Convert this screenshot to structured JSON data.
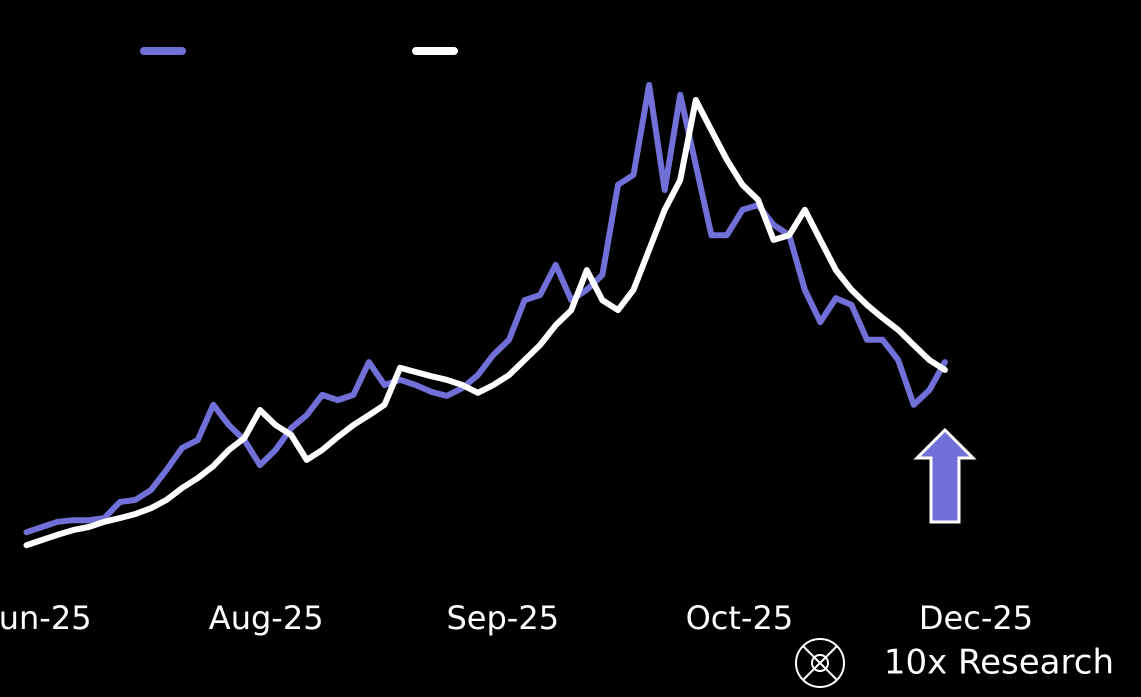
{
  "chart_data": {
    "type": "line",
    "x": [
      0,
      1,
      2,
      3,
      4,
      5,
      6,
      7,
      8,
      9,
      10,
      11,
      12,
      13,
      14,
      15,
      16,
      17,
      18,
      19,
      20,
      21,
      22,
      23,
      24,
      25,
      26,
      27,
      28,
      29,
      30,
      31,
      32,
      33,
      34,
      35,
      36,
      37,
      38,
      39,
      40,
      41,
      42,
      43,
      44,
      45,
      46,
      47,
      48,
      49,
      50,
      51,
      52,
      53,
      54,
      55,
      56,
      57,
      58,
      59
    ],
    "series": [
      {
        "color": "#7070d8",
        "values": [
          9.2,
          10.2,
          11.2,
          11.5,
          11.5,
          11.9,
          15.0,
          15.4,
          17.3,
          21.2,
          25.4,
          26.9,
          33.7,
          29.8,
          26.9,
          22.1,
          25.0,
          29.2,
          31.7,
          35.6,
          34.6,
          35.6,
          41.9,
          37.5,
          38.5,
          37.5,
          36.2,
          35.4,
          36.9,
          39.4,
          43.3,
          46.2,
          53.8,
          54.8,
          60.6,
          53.8,
          55.8,
          58.7,
          76.0,
          77.9,
          95.2,
          75.0,
          93.3,
          79.8,
          66.3,
          66.3,
          71.2,
          72.1,
          68.3,
          66.3,
          55.8,
          49.6,
          54.2,
          52.9,
          46.2,
          46.2,
          42.3,
          33.7,
          36.5,
          41.9
        ]
      },
      {
        "color": "#ffffff",
        "values": [
          6.7,
          7.7,
          8.7,
          9.6,
          10.2,
          11.2,
          11.9,
          12.7,
          13.8,
          15.4,
          17.7,
          19.6,
          21.9,
          25.0,
          27.3,
          32.7,
          29.8,
          27.9,
          23.1,
          25.0,
          27.5,
          29.8,
          31.7,
          33.7,
          40.8,
          40.0,
          39.2,
          38.5,
          37.5,
          36.0,
          37.5,
          39.4,
          42.3,
          45.2,
          49.0,
          51.9,
          59.6,
          53.8,
          51.9,
          55.8,
          63.5,
          71.2,
          76.9,
          92.3,
          86.5,
          80.8,
          76.0,
          73.1,
          65.4,
          66.3,
          71.2,
          65.4,
          59.6,
          55.8,
          52.9,
          50.4,
          48.1,
          45.2,
          42.3,
          40.4
        ]
      }
    ],
    "xlim": [
      -1.7,
      71.6
    ],
    "xticks": [
      {
        "value": 1.2,
        "label": "un-25"
      },
      {
        "value": 15.4,
        "label": "Aug-25"
      },
      {
        "value": 30.6,
        "label": "Sep-25"
      },
      {
        "value": 45.8,
        "label": "Oct-25"
      },
      {
        "value": 61,
        "label": "Dec-25"
      }
    ],
    "ylim": [
      0,
      100
    ],
    "grid": false
  },
  "watermark": "10x Research"
}
